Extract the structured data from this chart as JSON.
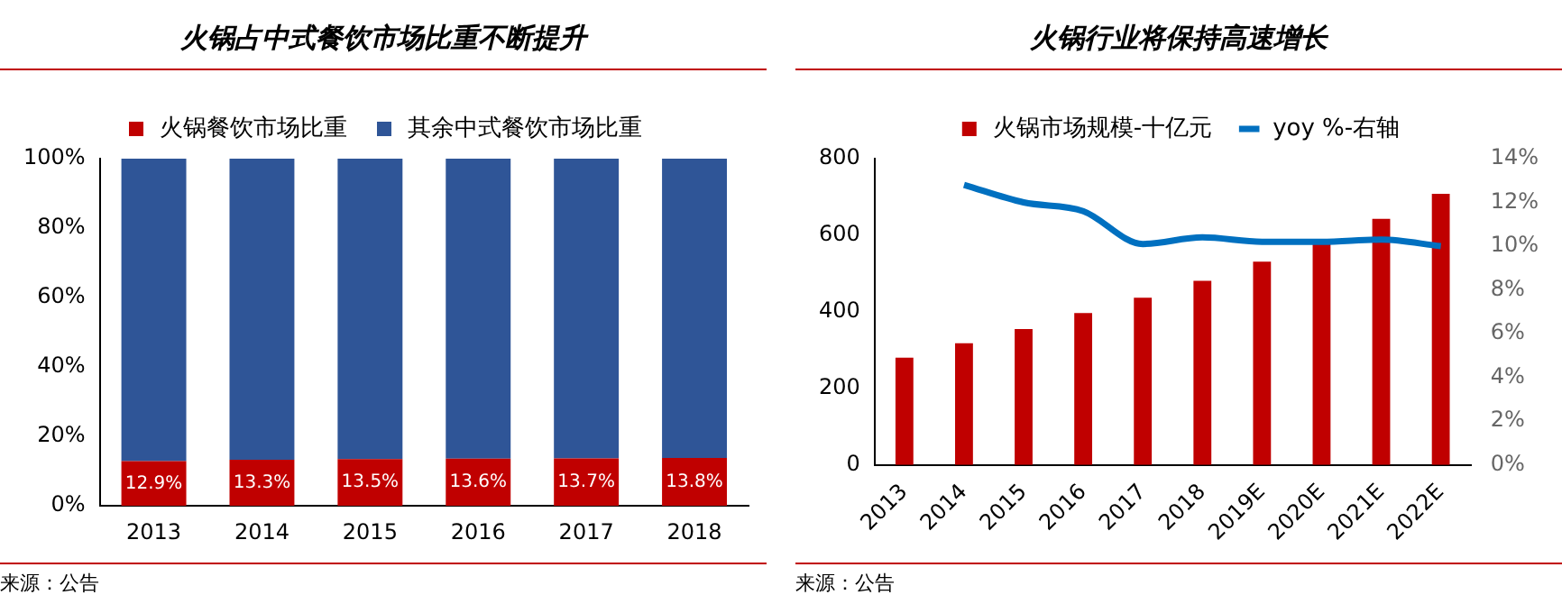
{
  "chart_data": [
    {
      "type": "bar",
      "stacked": true,
      "title": "火锅占中式餐饮市场比重不断提升",
      "categories": [
        "2013",
        "2014",
        "2015",
        "2016",
        "2017",
        "2018"
      ],
      "series": [
        {
          "name": "火锅餐饮市场比重",
          "color": "#c00000",
          "values": [
            12.9,
            13.3,
            13.5,
            13.6,
            13.7,
            13.8
          ],
          "value_labels": [
            "12.9%",
            "13.3%",
            "13.5%",
            "13.6%",
            "13.7%",
            "13.8%"
          ]
        },
        {
          "name": "其余中式餐饮市场比重",
          "color": "#2f5597",
          "values": [
            87.1,
            86.7,
            86.5,
            86.4,
            86.3,
            86.2
          ]
        }
      ],
      "ylim": [
        0,
        100
      ],
      "yticks": [
        {
          "value": 0,
          "label": "0%"
        },
        {
          "value": 20,
          "label": "20%"
        },
        {
          "value": 40,
          "label": "40%"
        },
        {
          "value": 60,
          "label": "60%"
        },
        {
          "value": 80,
          "label": "80%"
        },
        {
          "value": 100,
          "label": "100%"
        }
      ],
      "grid": false,
      "legend": "top",
      "annotations": [
        "来源：公告"
      ]
    },
    {
      "type": "bar",
      "title": "火锅行业将保持高速增长",
      "categories": [
        "2013",
        "2014",
        "2015",
        "2016",
        "2017",
        "2018",
        "2019E",
        "2020E",
        "2021E",
        "2022E"
      ],
      "series": [
        {
          "name": "火锅市场规模-十亿元",
          "color": "#c00000",
          "values": [
            280,
            318,
            355,
            397,
            437,
            481,
            531,
            578,
            643,
            708
          ]
        },
        {
          "name": "yoy %-右轴",
          "type": "line",
          "axis": "y2",
          "color": "#0070c0",
          "values": [
            null,
            12.8,
            12.0,
            11.6,
            10.1,
            10.4,
            10.2,
            10.2,
            10.3,
            10.0
          ]
        }
      ],
      "ylim": [
        0,
        800
      ],
      "yticks": [
        0,
        200,
        400,
        600,
        800
      ],
      "y2lim": [
        0,
        14
      ],
      "y2ticks": [
        {
          "value": 0,
          "label": "0%"
        },
        {
          "value": 2,
          "label": "2%"
        },
        {
          "value": 4,
          "label": "4%"
        },
        {
          "value": 6,
          "label": "6%"
        },
        {
          "value": 8,
          "label": "8%"
        },
        {
          "value": 10,
          "label": "10%"
        },
        {
          "value": 12,
          "label": "12%"
        },
        {
          "value": 14,
          "label": "14%"
        }
      ],
      "grid": false,
      "legend": "top",
      "marker": "none",
      "line_style": "solid",
      "annotations": [
        "来源：公告"
      ]
    }
  ]
}
